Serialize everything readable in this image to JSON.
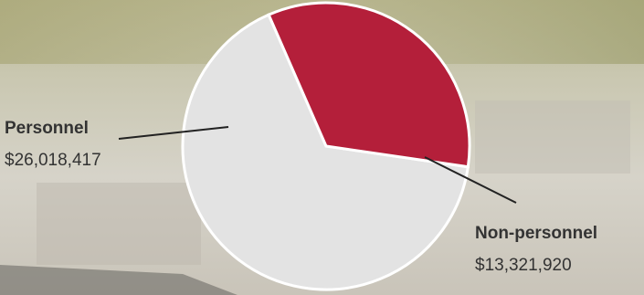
{
  "chart_data": {
    "type": "pie",
    "categories": [
      "Personnel",
      "Non-personnel"
    ],
    "values": [
      26018417,
      13321920
    ],
    "value_labels": [
      "$26,018,417",
      "$13,321,920"
    ],
    "colors": [
      "#e3e3e3",
      "#b41f3a"
    ]
  }
}
